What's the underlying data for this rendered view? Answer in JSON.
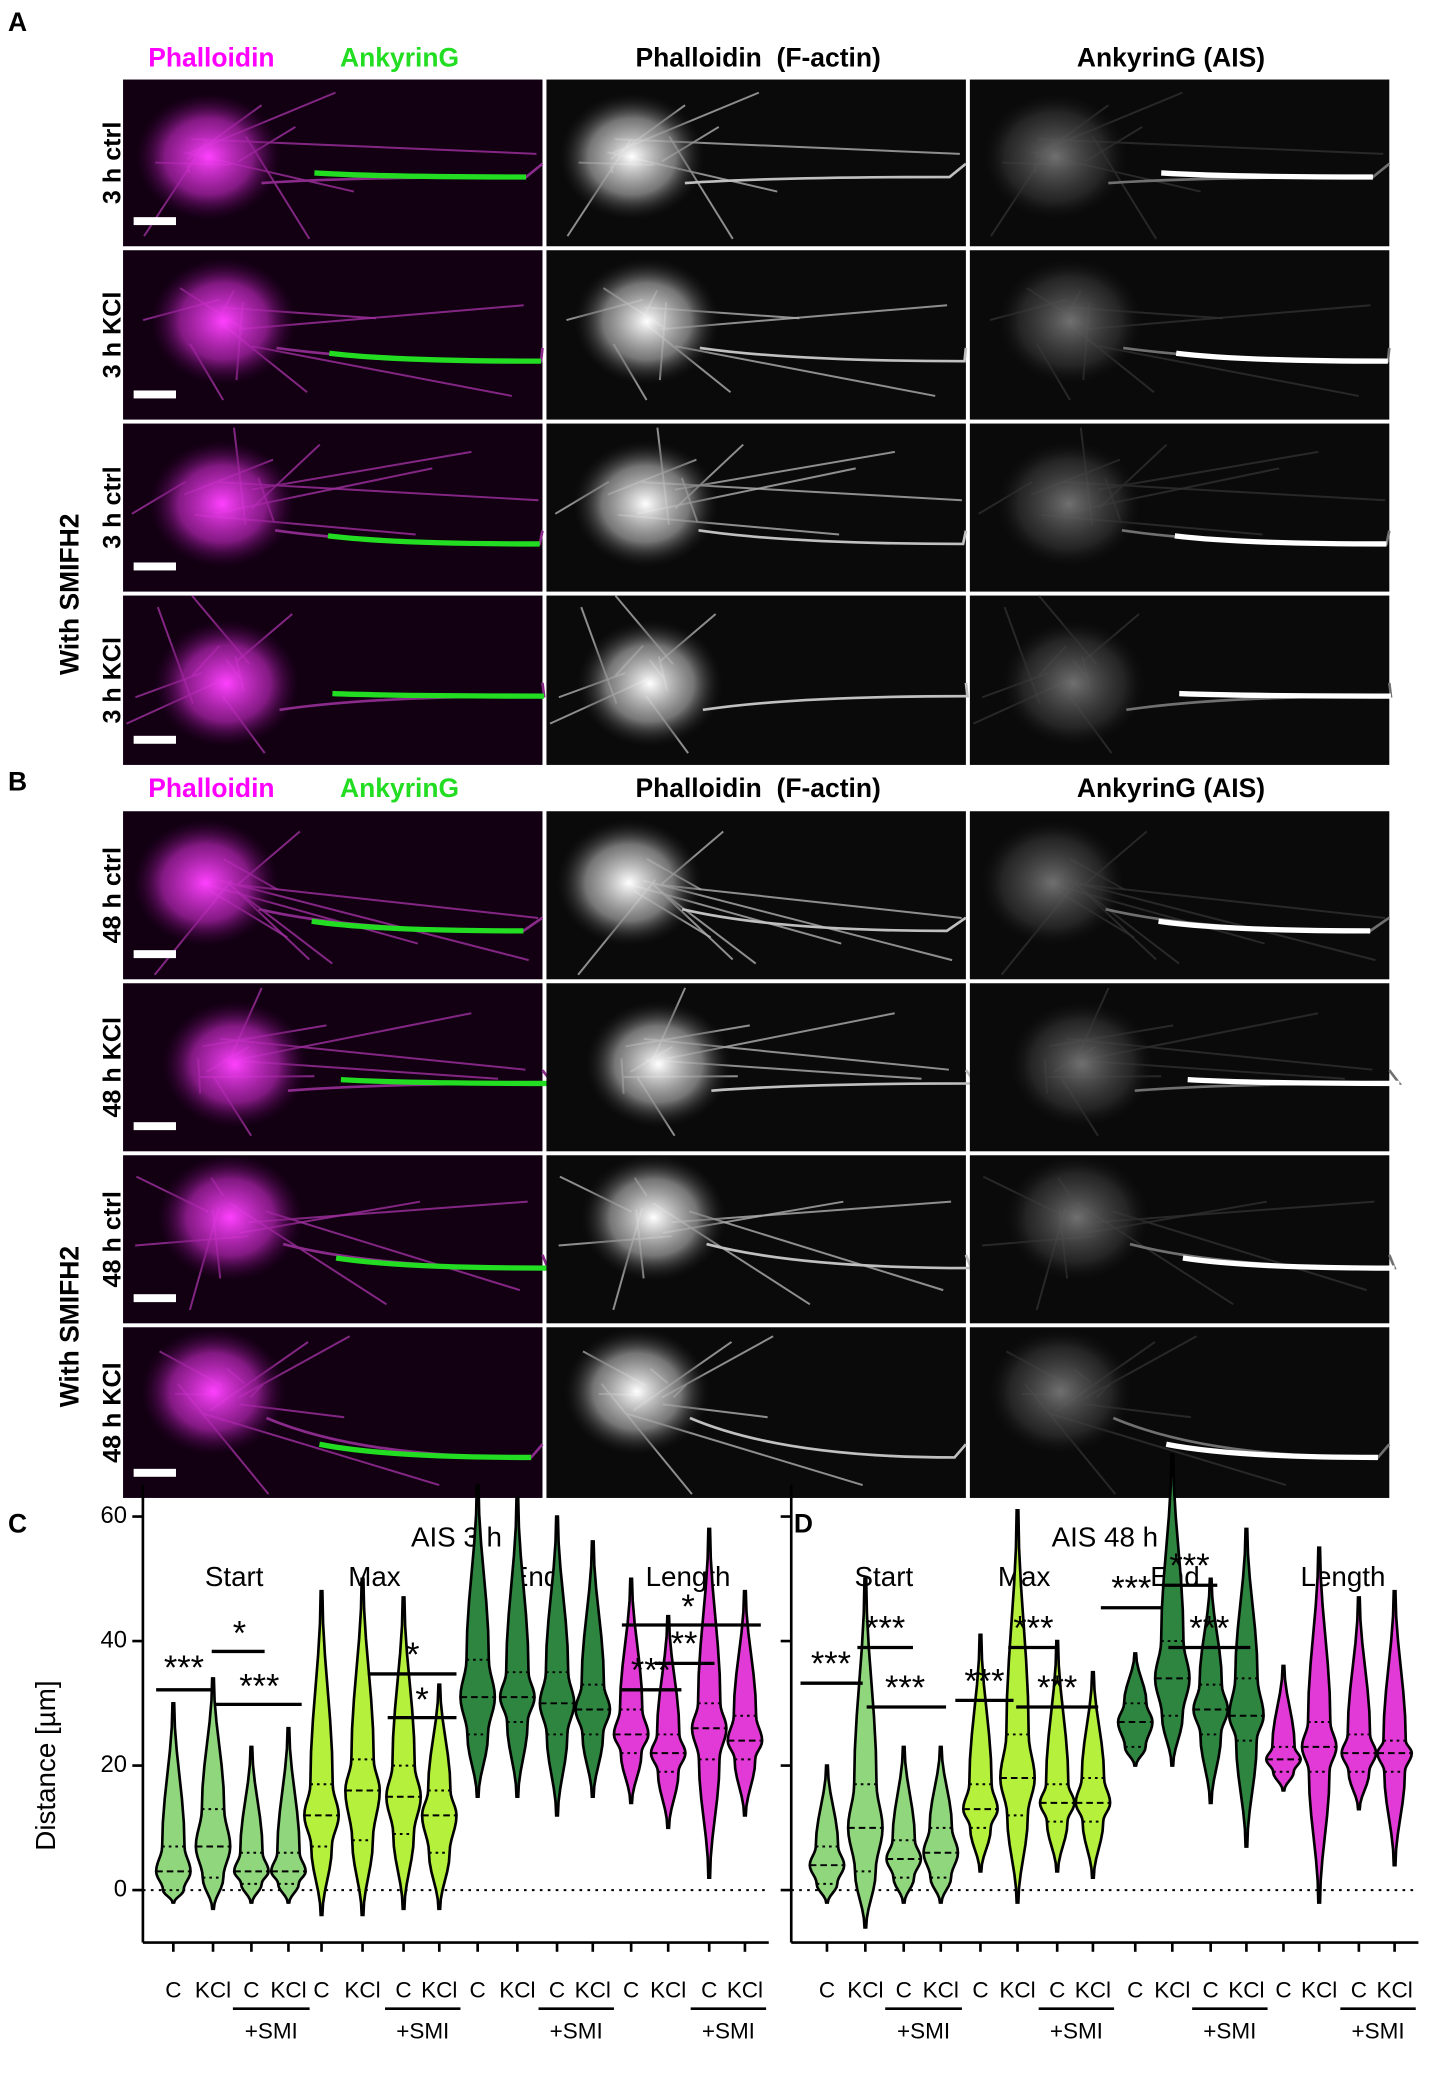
{
  "panel_A": {
    "label": "A",
    "headers": {
      "merge_1": "Phalloidin",
      "merge_2": "AnkyrinG",
      "col2": "Phalloidin  (F-actin)",
      "col3": "AnkyrinG (AIS)"
    },
    "rows": [
      "3 h ctrl",
      "3 h KCl",
      "3 h ctrl",
      "3 h KCl"
    ],
    "group": "With SMIFH2"
  },
  "panel_B": {
    "label": "B",
    "headers": {
      "merge_1": "Phalloidin",
      "merge_2": "AnkyrinG",
      "col2": "Phalloidin  (F-actin)",
      "col3": "AnkyrinG (AIS)"
    },
    "rows": [
      "48 h ctrl",
      "48 h KCl",
      "48 h ctrl",
      "48 h KCl"
    ],
    "group": "With SMIFH2"
  },
  "chart_data": [
    {
      "type": "violin",
      "panel": "C",
      "title": "AIS 3 h",
      "y_label": "Distance [µm]",
      "ylim": [
        -8,
        70
      ],
      "yticks": [
        0,
        20,
        40,
        60
      ],
      "zero_line": true,
      "groups": [
        {
          "name": "Start",
          "color": "#8fd67c",
          "categories": [
            "C",
            "KCl",
            "C",
            "KCl"
          ],
          "subgroup": "+SMI",
          "median": [
            3,
            7,
            3,
            3
          ],
          "q1": [
            0,
            2,
            1,
            1
          ],
          "q3": [
            7,
            13,
            6,
            6
          ],
          "min": [
            -2,
            -3,
            -2,
            -2
          ],
          "max": [
            30,
            34,
            23,
            26
          ]
        },
        {
          "name": "Max",
          "color": "#b4f03c",
          "categories": [
            "C",
            "KCl",
            "C",
            "KCl"
          ],
          "subgroup": "+SMI",
          "median": [
            12,
            16,
            15,
            12
          ],
          "q1": [
            7,
            8,
            9,
            6
          ],
          "q3": [
            17,
            21,
            20,
            16
          ],
          "min": [
            -4,
            -4,
            -3,
            -3
          ],
          "max": [
            48,
            50,
            47,
            33
          ]
        },
        {
          "name": "End",
          "color": "#2e8540",
          "categories": [
            "C",
            "KCl",
            "C",
            "KCl"
          ],
          "subgroup": "+SMI",
          "median": [
            31,
            31,
            30,
            29
          ],
          "q1": [
            25,
            27,
            25,
            25
          ],
          "q3": [
            37,
            35,
            35,
            33
          ],
          "min": [
            15,
            15,
            12,
            15
          ],
          "max": [
            65,
            63,
            60,
            56
          ]
        },
        {
          "name": "Length",
          "color": "#e23ad6",
          "categories": [
            "C",
            "KCl",
            "C",
            "KCl"
          ],
          "subgroup": "+SMI",
          "median": [
            25,
            22,
            26,
            24
          ],
          "q1": [
            22,
            19,
            21,
            21
          ],
          "q3": [
            29,
            25,
            30,
            28
          ],
          "min": [
            14,
            10,
            2,
            12
          ],
          "max": [
            50,
            44,
            58,
            48
          ]
        }
      ],
      "annotations": [
        "***",
        "*",
        "***",
        "*",
        "*",
        "***",
        "**",
        "*"
      ]
    },
    {
      "type": "violin",
      "panel": "D",
      "title": "AIS 48 h",
      "ylim": [
        -8,
        70
      ],
      "yticks": [
        0,
        20,
        40,
        60
      ],
      "zero_line": true,
      "groups": [
        {
          "name": "Start",
          "color": "#8fd67c",
          "categories": [
            "C",
            "KCl",
            "C",
            "KCl"
          ],
          "subgroup": "+SMI",
          "median": [
            4,
            10,
            5,
            6
          ],
          "q1": [
            1,
            3,
            2,
            2
          ],
          "q3": [
            7,
            17,
            8,
            10
          ],
          "min": [
            -2,
            -6,
            -2,
            -2
          ],
          "max": [
            20,
            50,
            23,
            23
          ]
        },
        {
          "name": "Max",
          "color": "#b4f03c",
          "categories": [
            "C",
            "KCl",
            "C",
            "KCl"
          ],
          "subgroup": "+SMI",
          "median": [
            13,
            18,
            14,
            14
          ],
          "q1": [
            10,
            12,
            11,
            11
          ],
          "q3": [
            17,
            25,
            17,
            18
          ],
          "min": [
            3,
            -2,
            3,
            2
          ],
          "max": [
            41,
            61,
            40,
            35
          ]
        },
        {
          "name": "End",
          "color": "#2e8540",
          "categories": [
            "C",
            "KCl",
            "C",
            "KCl"
          ],
          "subgroup": "+SMI",
          "median": [
            27,
            34,
            29,
            28
          ],
          "q1": [
            23,
            28,
            25,
            24
          ],
          "q3": [
            30,
            40,
            33,
            34
          ],
          "min": [
            20,
            20,
            14,
            7
          ],
          "max": [
            38,
            70,
            50,
            58
          ]
        },
        {
          "name": "Length",
          "color": "#e23ad6",
          "categories": [
            "C",
            "KCl",
            "C",
            "KCl"
          ],
          "subgroup": "+SMI",
          "median": [
            21,
            23,
            22,
            22
          ],
          "q1": [
            19,
            19,
            19,
            19
          ],
          "q3": [
            23,
            27,
            25,
            24
          ],
          "min": [
            16,
            -2,
            13,
            4
          ],
          "max": [
            36,
            55,
            47,
            48
          ]
        }
      ],
      "annotations": [
        "***",
        "***",
        "***",
        "***",
        "***",
        "***",
        "***",
        "***",
        "***"
      ]
    }
  ]
}
